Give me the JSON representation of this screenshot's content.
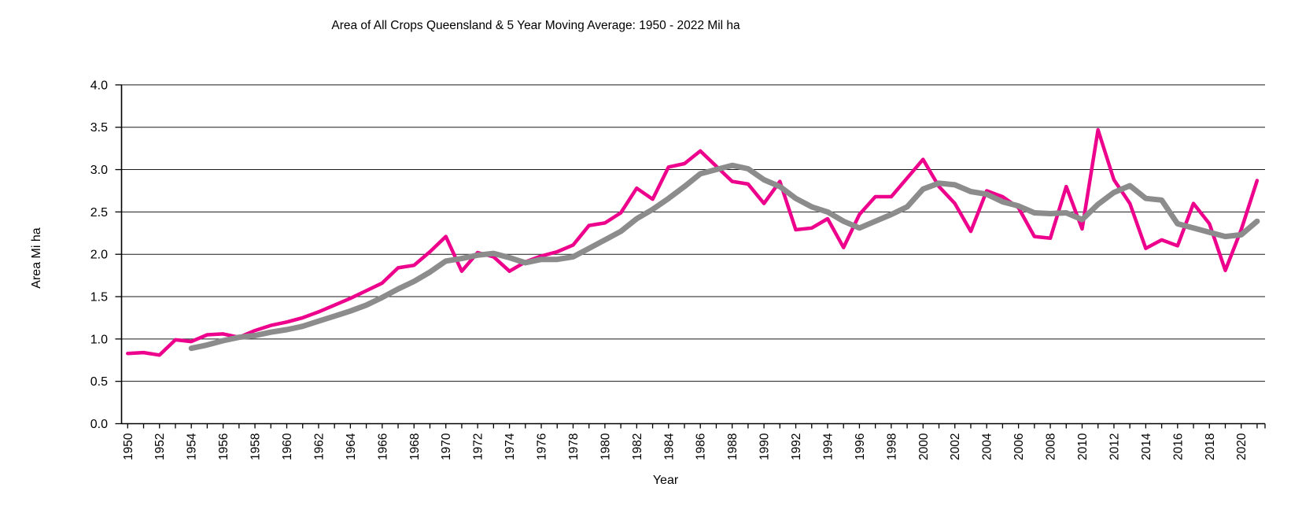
{
  "chart_data": {
    "type": "line",
    "title": "Area of All Crops Queensland & 5 Year Moving Average: 1950 - 2022 Mil ha",
    "xlabel": "Year",
    "ylabel": "Area Mi ha",
    "ylim": [
      0.0,
      4.0
    ],
    "ytick_step": 0.5,
    "ytick_labels": [
      "0.0",
      "0.5",
      "1.0",
      "1.5",
      "2.0",
      "2.5",
      "3.0",
      "3.5",
      "4.0"
    ],
    "xtick_labels": [
      "1950",
      "1952",
      "1954",
      "1956",
      "1958",
      "1960",
      "1962",
      "1964",
      "1966",
      "1968",
      "1970",
      "1972",
      "1974",
      "1976",
      "1978",
      "1980",
      "1982",
      "1984",
      "1986",
      "1988",
      "1990",
      "1992",
      "1994",
      "1996",
      "1998",
      "2000",
      "2002",
      "2004",
      "2006",
      "2008",
      "2010",
      "2012",
      "2014",
      "2016",
      "2018",
      "2020"
    ],
    "grid": "horizontal",
    "legend_position": "none",
    "series": [
      {
        "name": "Area of All Crops Queensland",
        "color": "#EC008C",
        "stroke_width": 4.5,
        "start_year": 1950,
        "values": [
          0.83,
          0.84,
          0.81,
          0.99,
          0.97,
          1.05,
          1.06,
          1.02,
          1.1,
          1.16,
          1.2,
          1.25,
          1.32,
          1.4,
          1.48,
          1.57,
          1.66,
          1.84,
          1.87,
          2.03,
          2.21,
          1.8,
          2.02,
          1.97,
          1.8,
          1.91,
          1.98,
          2.03,
          2.11,
          2.34,
          2.37,
          2.49,
          2.78,
          2.65,
          3.03,
          3.07,
          3.22,
          3.04,
          2.86,
          2.83,
          2.6,
          2.86,
          2.29,
          2.31,
          2.42,
          2.08,
          2.47,
          2.68,
          2.68,
          2.9,
          3.12,
          2.8,
          2.6,
          2.27,
          2.75,
          2.68,
          2.55,
          2.21,
          2.19,
          2.8,
          2.3,
          3.47,
          2.88,
          2.6,
          2.07,
          2.17,
          2.1,
          2.6,
          2.36,
          1.81,
          2.29,
          2.87
        ]
      },
      {
        "name": "5 Year Moving Average",
        "color": "#8C8C8C",
        "stroke_width": 7,
        "start_year": 1954,
        "values": [
          0.89,
          0.93,
          0.98,
          1.02,
          1.04,
          1.08,
          1.11,
          1.15,
          1.21,
          1.27,
          1.33,
          1.4,
          1.49,
          1.59,
          1.68,
          1.79,
          1.92,
          1.95,
          1.99,
          2.01,
          1.96,
          1.9,
          1.94,
          1.94,
          1.97,
          2.07,
          2.17,
          2.27,
          2.42,
          2.53,
          2.66,
          2.8,
          2.95,
          3.0,
          3.05,
          3.01,
          2.88,
          2.8,
          2.66,
          2.56,
          2.5,
          2.39,
          2.31,
          2.39,
          2.47,
          2.56,
          2.77,
          2.84,
          2.82,
          2.74,
          2.71,
          2.62,
          2.57,
          2.49,
          2.48,
          2.49,
          2.41,
          2.59,
          2.73,
          2.81,
          2.66,
          2.64,
          2.36,
          2.31,
          2.26,
          2.21,
          2.23,
          2.39
        ]
      }
    ],
    "colors": {
      "annual_line": "#EC008C",
      "moving_average_line": "#8C8C8C",
      "gridline": "#1a1a1a",
      "axis": "#000000",
      "background": "#ffffff"
    }
  }
}
